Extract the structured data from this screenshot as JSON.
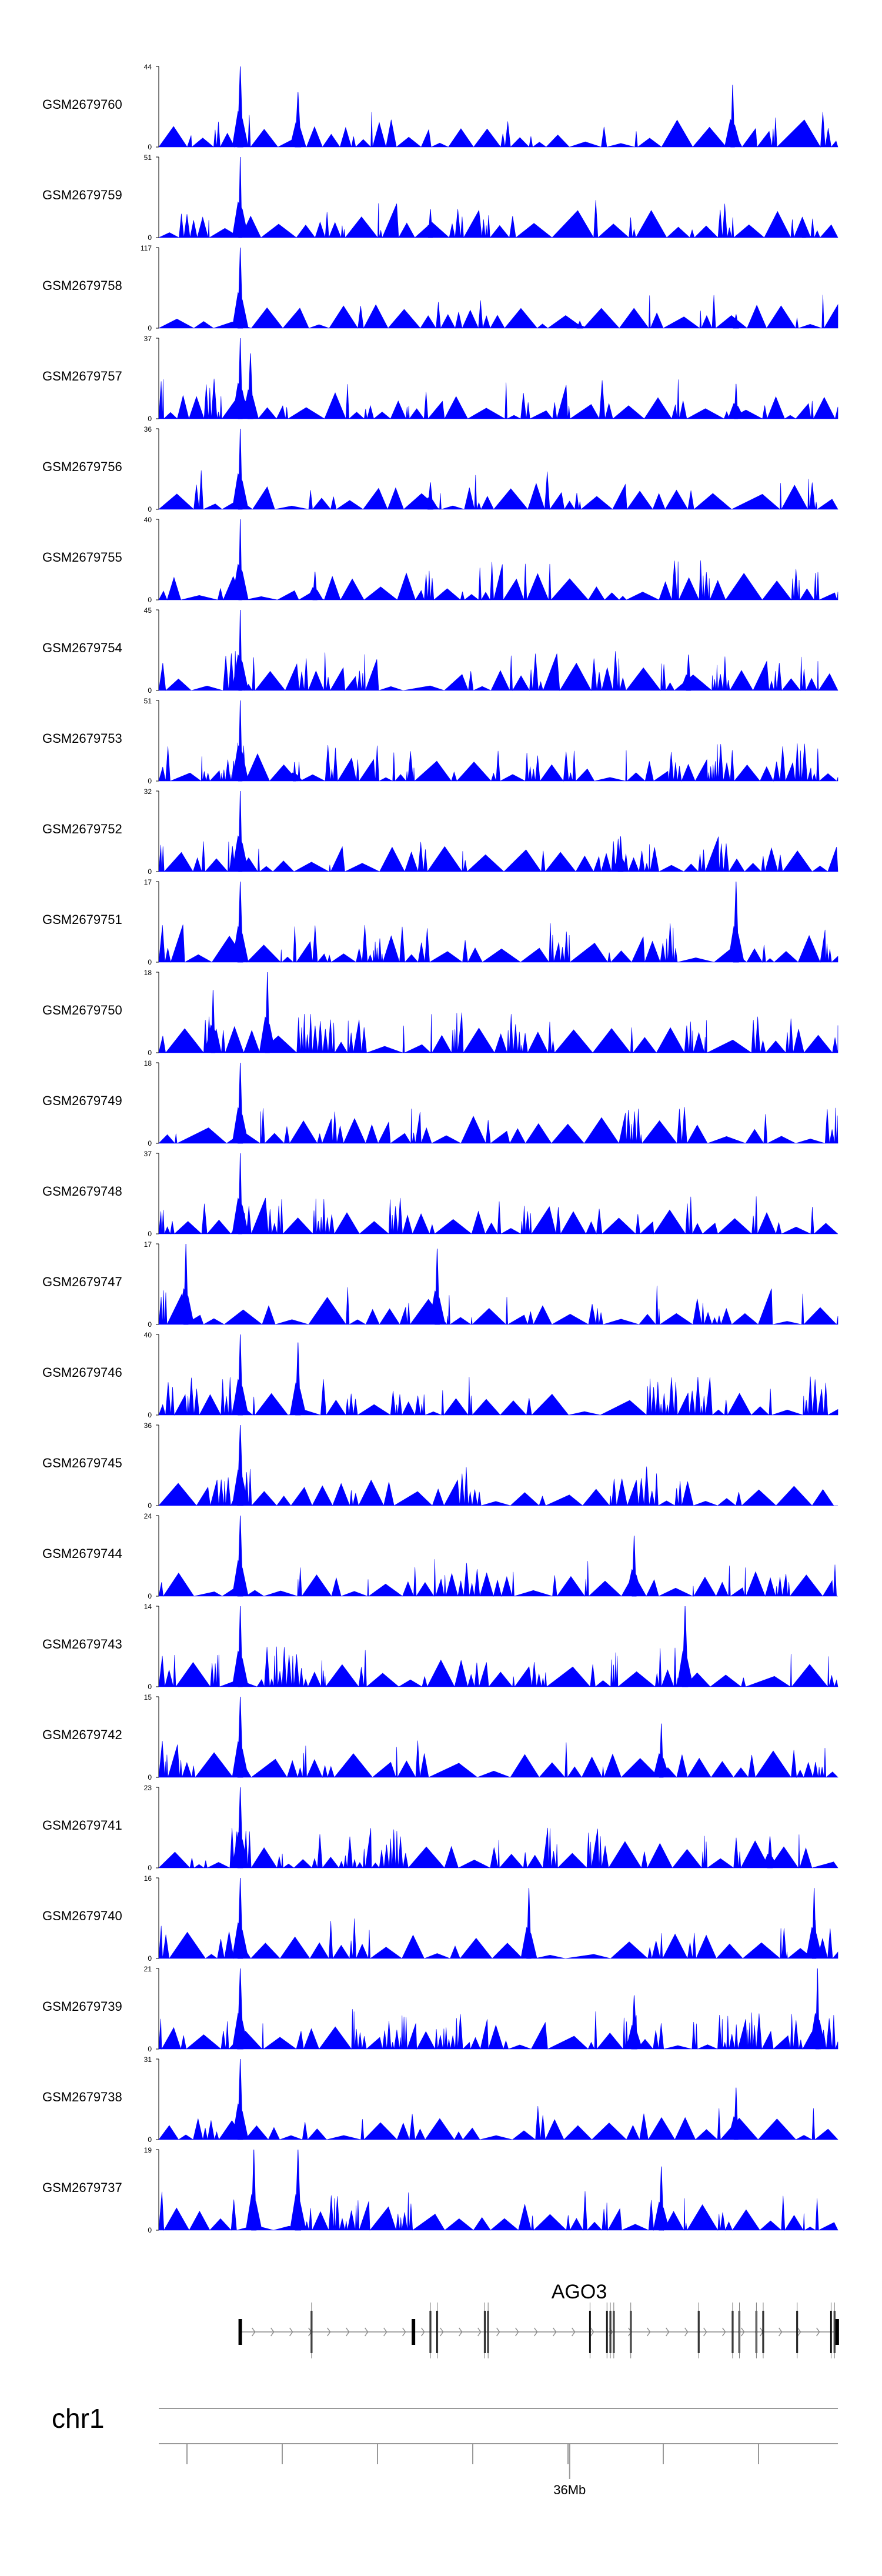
{
  "chart_data": {
    "type": "area",
    "tracks": [
      {
        "name": "GSM2679760",
        "ymax": 44,
        "peaks": [
          [
            0.12,
            44
          ],
          [
            0.205,
            30
          ],
          [
            0.845,
            34
          ]
        ]
      },
      {
        "name": "GSM2679759",
        "ymax": 51,
        "peaks": [
          [
            0.12,
            51
          ],
          [
            0.4,
            18
          ],
          [
            0.95,
            10
          ]
        ]
      },
      {
        "name": "GSM2679758",
        "ymax": 117,
        "peaks": [
          [
            0.12,
            117
          ],
          [
            0.62,
            10
          ],
          [
            0.85,
            20
          ]
        ]
      },
      {
        "name": "GSM2679757",
        "ymax": 37,
        "peaks": [
          [
            0.12,
            37
          ],
          [
            0.135,
            30
          ],
          [
            0.85,
            16
          ]
        ]
      },
      {
        "name": "GSM2679756",
        "ymax": 36,
        "peaks": [
          [
            0.12,
            36
          ],
          [
            0.4,
            12
          ]
        ]
      },
      {
        "name": "GSM2679755",
        "ymax": 40,
        "peaks": [
          [
            0.12,
            40
          ],
          [
            0.23,
            14
          ]
        ]
      },
      {
        "name": "GSM2679754",
        "ymax": 45,
        "peaks": [
          [
            0.12,
            45
          ],
          [
            0.78,
            20
          ]
        ]
      },
      {
        "name": "GSM2679753",
        "ymax": 51,
        "peaks": [
          [
            0.12,
            51
          ],
          [
            0.2,
            12
          ]
        ]
      },
      {
        "name": "GSM2679752",
        "ymax": 32,
        "peaks": [
          [
            0.12,
            32
          ],
          [
            0.68,
            14
          ]
        ]
      },
      {
        "name": "GSM2679751",
        "ymax": 17,
        "peaks": [
          [
            0.12,
            17
          ],
          [
            0.85,
            17
          ]
        ]
      },
      {
        "name": "GSM2679750",
        "ymax": 18,
        "peaks": [
          [
            0.16,
            18
          ],
          [
            0.08,
            14
          ]
        ]
      },
      {
        "name": "GSM2679749",
        "ymax": 18,
        "peaks": [
          [
            0.12,
            18
          ]
        ]
      },
      {
        "name": "GSM2679748",
        "ymax": 37,
        "peaks": [
          [
            0.12,
            37
          ]
        ]
      },
      {
        "name": "GSM2679747",
        "ymax": 17,
        "peaks": [
          [
            0.04,
            17
          ],
          [
            0.41,
            16
          ]
        ]
      },
      {
        "name": "GSM2679746",
        "ymax": 40,
        "peaks": [
          [
            0.12,
            40
          ],
          [
            0.205,
            36
          ]
        ]
      },
      {
        "name": "GSM2679745",
        "ymax": 36,
        "peaks": [
          [
            0.12,
            36
          ]
        ]
      },
      {
        "name": "GSM2679744",
        "ymax": 24,
        "peaks": [
          [
            0.12,
            24
          ],
          [
            0.7,
            18
          ]
        ]
      },
      {
        "name": "GSM2679743",
        "ymax": 14,
        "peaks": [
          [
            0.12,
            14
          ],
          [
            0.775,
            14
          ]
        ]
      },
      {
        "name": "GSM2679742",
        "ymax": 15,
        "peaks": [
          [
            0.12,
            15
          ],
          [
            0.74,
            10
          ]
        ]
      },
      {
        "name": "GSM2679741",
        "ymax": 23,
        "peaks": [
          [
            0.12,
            23
          ],
          [
            0.9,
            9
          ]
        ]
      },
      {
        "name": "GSM2679740",
        "ymax": 16,
        "peaks": [
          [
            0.12,
            16
          ],
          [
            0.545,
            14
          ],
          [
            0.965,
            14
          ]
        ]
      },
      {
        "name": "GSM2679739",
        "ymax": 21,
        "peaks": [
          [
            0.12,
            21
          ],
          [
            0.97,
            21
          ],
          [
            0.7,
            14
          ]
        ]
      },
      {
        "name": "GSM2679738",
        "ymax": 31,
        "peaks": [
          [
            0.12,
            31
          ],
          [
            0.85,
            20
          ]
        ]
      },
      {
        "name": "GSM2679737",
        "ymax": 19,
        "peaks": [
          [
            0.14,
            19
          ],
          [
            0.205,
            19
          ],
          [
            0.74,
            15
          ]
        ]
      }
    ],
    "ymin": 0,
    "fill_color": "#0000ff",
    "gene": {
      "name": "AGO3",
      "start": 0.12,
      "end": 1.0,
      "exons": [
        0.12,
        0.225,
        0.375,
        0.4,
        0.41,
        0.48,
        0.485,
        0.635,
        0.66,
        0.665,
        0.67,
        0.695,
        0.795,
        0.845,
        0.855,
        0.88,
        0.89,
        0.94,
        0.99,
        0.995,
        0.999
      ]
    },
    "axis": {
      "chromosome": "chr1",
      "tick_label": "36Mb",
      "tick_label_pos": 0.605
    }
  }
}
